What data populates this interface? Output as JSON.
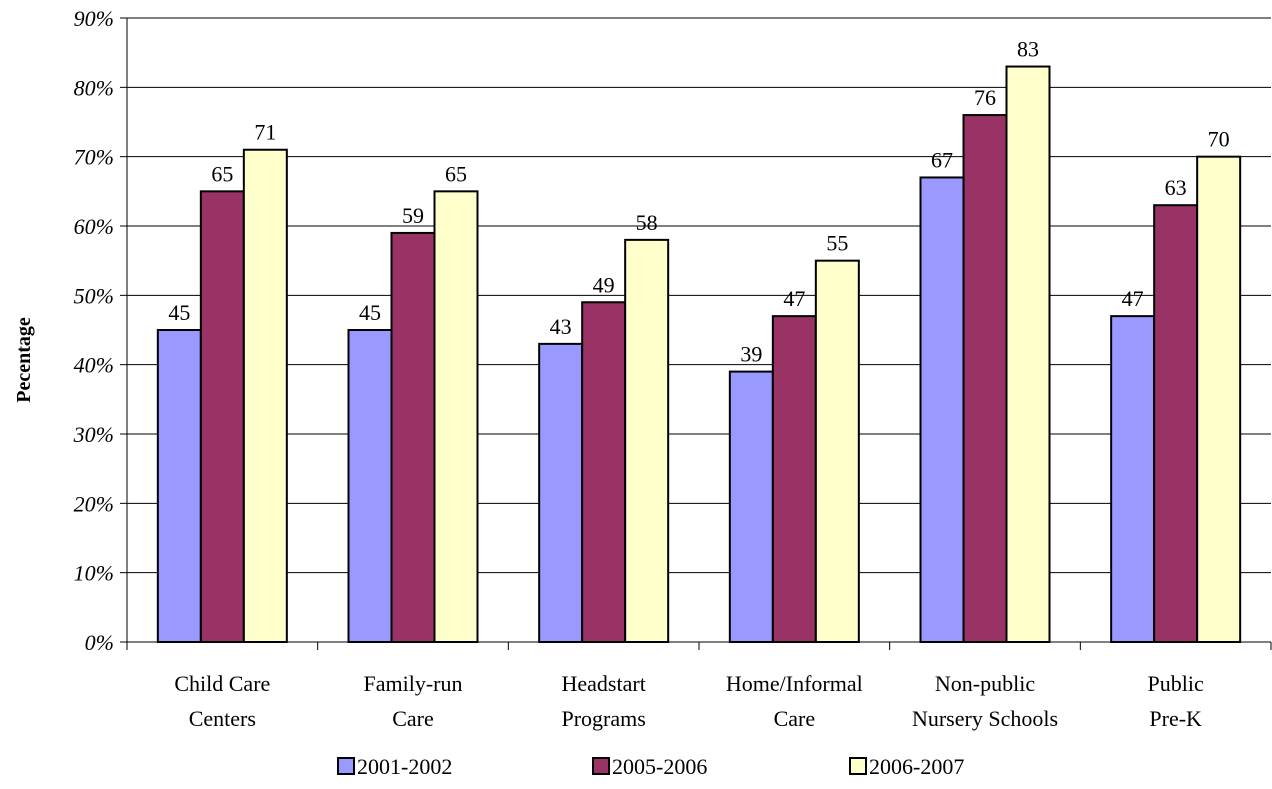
{
  "chart_data": {
    "type": "bar",
    "title": "",
    "xlabel": "",
    "ylabel": "Pecentage",
    "ylim": [
      0,
      90
    ],
    "ytick_step": 10,
    "ytick_format": "percent",
    "grid": true,
    "legend_position": "bottom",
    "categories": [
      [
        "Child Care",
        "Centers"
      ],
      [
        "Family-run",
        "Care"
      ],
      [
        "Headstart",
        "Programs"
      ],
      [
        "Home/Informal",
        "Care"
      ],
      [
        "Non-public",
        "Nursery Schools"
      ],
      [
        "Public",
        "Pre-K"
      ]
    ],
    "series": [
      {
        "name": "2001-2002",
        "color": "#9999ff",
        "values": [
          45,
          45,
          43,
          39,
          67,
          47
        ]
      },
      {
        "name": "2005-2006",
        "color": "#993366",
        "values": [
          65,
          59,
          49,
          47,
          76,
          63
        ]
      },
      {
        "name": "2006-2007",
        "color": "#ffffcc",
        "values": [
          71,
          65,
          58,
          55,
          83,
          70
        ]
      }
    ]
  }
}
